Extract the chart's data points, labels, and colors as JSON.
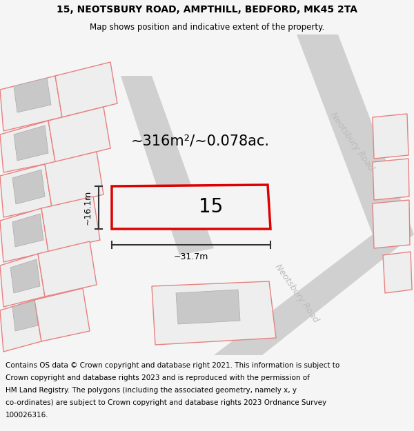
{
  "title_line1": "15, NEOTSBURY ROAD, AMPTHILL, BEDFORD, MK45 2TA",
  "title_line2": "Map shows position and indicative extent of the property.",
  "area_text": "~316m²/~0.078ac.",
  "label_15": "15",
  "dim_width": "~31.7m",
  "dim_height": "~16.1m",
  "road_label_top": "Neotsbury Road",
  "road_label_bottom": "Neotsbury Road",
  "footer_lines": [
    "Contains OS data © Crown copyright and database right 2021. This information is subject to",
    "Crown copyright and database rights 2023 and is reproduced with the permission of",
    "HM Land Registry. The polygons (including the associated geometry, namely x, y",
    "co-ordinates) are subject to Crown copyright and database rights 2023 Ordnance Survey",
    "100026316."
  ],
  "bg_color": "#f5f5f5",
  "map_bg": "#ffffff",
  "plot_color": "#dd0000",
  "road_fill": "#d0d0d0",
  "building_fill": "#c8c8c8",
  "parcel_fill": "#eeeeee",
  "other_outline": "#e88080",
  "text_color": "#000000",
  "road_text_color": "#bbbbbb",
  "dim_line_color": "#333333",
  "title_fontsize": 10,
  "subtitle_fontsize": 8.5,
  "area_fontsize": 15,
  "label_fontsize": 20,
  "dim_fontsize": 9,
  "road_fontsize": 9,
  "footer_fontsize": 7.5
}
